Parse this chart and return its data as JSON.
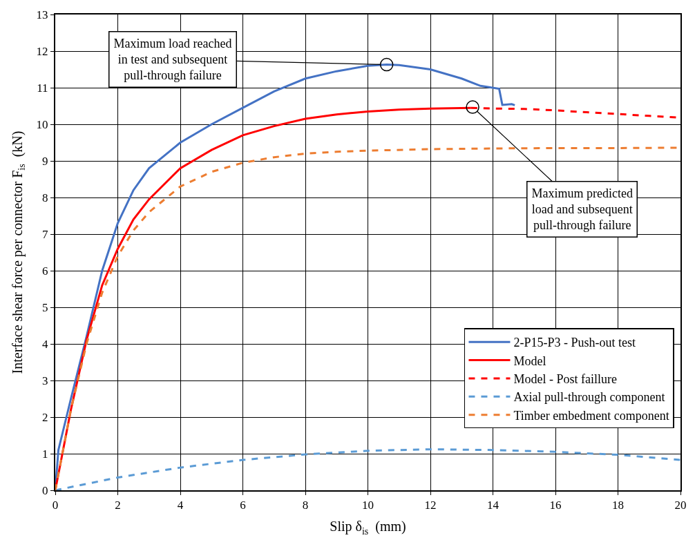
{
  "chart_data": {
    "type": "line",
    "xlabel": "Slip δ$_{is}$  (mm)",
    "ylabel": "Interface shear force per connector F$_{is}$  (kN)",
    "xlim": [
      0,
      20
    ],
    "xticks": [
      0,
      2,
      4,
      6,
      8,
      10,
      12,
      14,
      16,
      18,
      20
    ],
    "ylim": [
      0,
      13
    ],
    "yticks": [
      0,
      1,
      2,
      3,
      4,
      5,
      6,
      7,
      8,
      9,
      10,
      11,
      12,
      13
    ],
    "grid": true,
    "legend": "bottom right",
    "marker": "none",
    "series": [
      {
        "name": "2-P15-P3 - Push-out test",
        "color": "#4472c4",
        "line_style": "solid",
        "x": [
          0,
          0.1,
          0.5,
          1,
          1.5,
          2,
          2.5,
          3,
          4,
          5,
          6,
          7,
          8,
          9,
          10,
          10.6,
          11,
          12,
          13,
          13.6,
          14.2,
          14.3,
          14.6,
          14.7
        ],
        "values": [
          0,
          1.1,
          2.5,
          4.2,
          6,
          7.3,
          8.2,
          8.8,
          9.5,
          10,
          10.45,
          10.9,
          11.25,
          11.45,
          11.6,
          11.63,
          11.62,
          11.5,
          11.25,
          11.05,
          10.97,
          10.53,
          10.55,
          10.52
        ]
      },
      {
        "name": "Model",
        "color": "#ff0000",
        "line_style": "solid",
        "x": [
          0,
          0.5,
          1,
          1.5,
          2,
          2.5,
          3,
          4,
          5,
          6,
          7,
          8,
          9,
          10,
          11,
          12,
          13.3
        ],
        "values": [
          0,
          2.2,
          4.1,
          5.6,
          6.6,
          7.4,
          7.95,
          8.8,
          9.3,
          9.7,
          9.95,
          10.15,
          10.27,
          10.35,
          10.4,
          10.43,
          10.45
        ]
      },
      {
        "name": "Model - Post faillure",
        "color": "#ff0000",
        "line_style": "dashed",
        "x": [
          13.3,
          14,
          15,
          16,
          17,
          18,
          19,
          20
        ],
        "values": [
          10.45,
          10.43,
          10.42,
          10.38,
          10.33,
          10.28,
          10.23,
          10.18
        ]
      },
      {
        "name": "Axial pull-through component",
        "color": "#5b9bd5",
        "line_style": "dashed",
        "x": [
          0,
          2,
          4,
          6,
          8,
          10,
          12,
          14,
          16,
          18,
          20
        ],
        "values": [
          0,
          0.35,
          0.62,
          0.83,
          0.98,
          1.08,
          1.12,
          1.1,
          1.05,
          0.97,
          0.83
        ]
      },
      {
        "name": "Timber embedment component",
        "color": "#ed7d31",
        "line_style": "dashed",
        "x": [
          0,
          0.5,
          1,
          1.5,
          2,
          2.5,
          3,
          4,
          5,
          6,
          7,
          8,
          9,
          10,
          12,
          14,
          16,
          18,
          20
        ],
        "values": [
          0,
          2.2,
          4,
          5.4,
          6.4,
          7.1,
          7.6,
          8.3,
          8.7,
          8.95,
          9.1,
          9.2,
          9.25,
          9.28,
          9.32,
          9.34,
          9.35,
          9.35,
          9.36
        ]
      }
    ],
    "annotations": [
      {
        "text": "Maximum load reached\nin test and subsequent\npull-through failure",
        "x": 10.6,
        "y": 11.63
      },
      {
        "text": "Maximum predicted\nload and subsequent\npull-through failure",
        "x": 13.35,
        "y": 10.47
      }
    ]
  }
}
